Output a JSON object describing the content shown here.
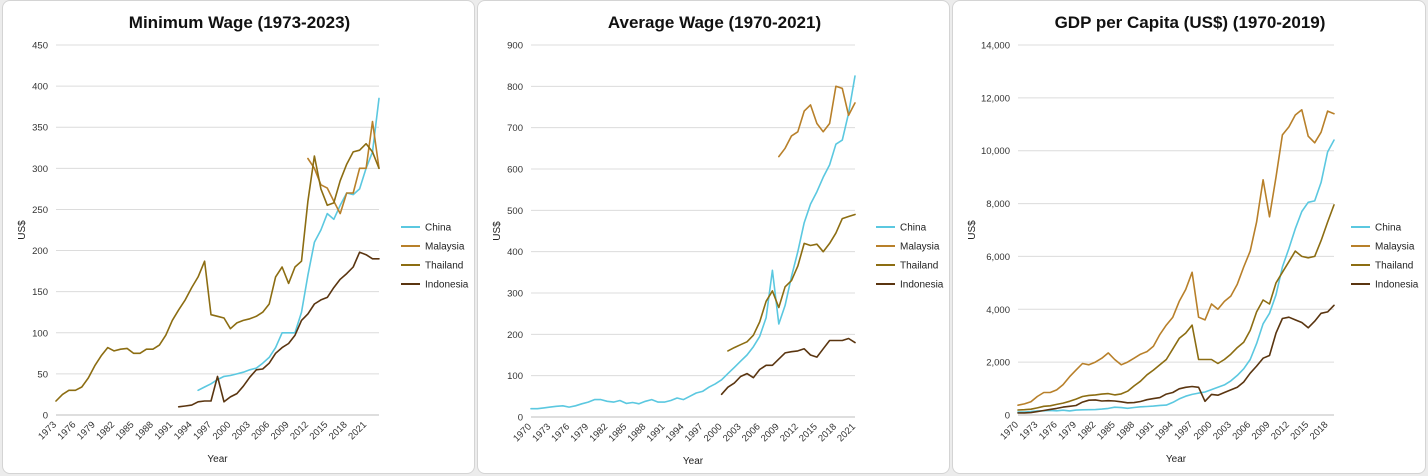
{
  "colors": {
    "China": "#5bc8e0",
    "Malaysia": "#b8802a",
    "Thailand": "#8c6d12",
    "Indonesia": "#5a3510"
  },
  "chart_data": [
    {
      "type": "line",
      "title": "Minimum Wage (1973-2023)",
      "xlabel": "Year",
      "ylabel": "US$",
      "xlim": [
        1973,
        2023
      ],
      "ylim": [
        0,
        450
      ],
      "x_ticks": [
        "1973",
        "1976",
        "1979",
        "1982",
        "1985",
        "1988",
        "1991",
        "1994",
        "1997",
        "2000",
        "2003",
        "2006",
        "2009",
        "2012",
        "2015",
        "2018",
        "2021"
      ],
      "y_ticks": [
        "0",
        "50",
        "100",
        "150",
        "200",
        "250",
        "300",
        "350",
        "400",
        "450"
      ],
      "legend": [
        "China",
        "Malaysia",
        "Thailand",
        "Indonesia"
      ],
      "series": [
        {
          "name": "China",
          "x": [
            1995,
            1996,
            1997,
            1998,
            1999,
            2000,
            2001,
            2002,
            2003,
            2004,
            2005,
            2006,
            2007,
            2008,
            2009,
            2010,
            2011,
            2012,
            2013,
            2014,
            2015,
            2016,
            2017,
            2018,
            2019,
            2020,
            2021,
            2022,
            2023
          ],
          "values": [
            30,
            34,
            38,
            43,
            47,
            48,
            50,
            52,
            55,
            57,
            63,
            70,
            82,
            100,
            100,
            100,
            125,
            170,
            210,
            225,
            245,
            238,
            255,
            270,
            268,
            275,
            300,
            320,
            385
          ]
        },
        {
          "name": "Malaysia",
          "x": [
            2012,
            2013,
            2014,
            2015,
            2016,
            2017,
            2018,
            2019,
            2020,
            2021,
            2022,
            2023
          ],
          "values": [
            312,
            300,
            280,
            276,
            260,
            245,
            270,
            270,
            300,
            300,
            357,
            300
          ]
        },
        {
          "name": "Thailand",
          "x": [
            1973,
            1974,
            1975,
            1976,
            1977,
            1978,
            1979,
            1980,
            1981,
            1982,
            1983,
            1984,
            1985,
            1986,
            1987,
            1988,
            1989,
            1990,
            1991,
            1992,
            1993,
            1994,
            1995,
            1996,
            1997,
            1998,
            1999,
            2000,
            2001,
            2002,
            2003,
            2004,
            2005,
            2006,
            2007,
            2008,
            2009,
            2010,
            2011,
            2012,
            2013,
            2014,
            2015,
            2016,
            2017,
            2018,
            2019,
            2020,
            2021,
            2022,
            2023
          ],
          "values": [
            17,
            25,
            30,
            30,
            34,
            45,
            60,
            72,
            82,
            78,
            80,
            81,
            75,
            75,
            80,
            80,
            85,
            97,
            115,
            128,
            140,
            155,
            168,
            187,
            122,
            120,
            118,
            105,
            112,
            115,
            117,
            120,
            125,
            135,
            168,
            180,
            160,
            180,
            187,
            260,
            315,
            275,
            255,
            258,
            285,
            305,
            320,
            322,
            330,
            320,
            300
          ]
        },
        {
          "name": "Indonesia",
          "x": [
            1992,
            1993,
            1994,
            1995,
            1996,
            1997,
            1998,
            1999,
            2000,
            2001,
            2002,
            2003,
            2004,
            2005,
            2006,
            2007,
            2008,
            2009,
            2010,
            2011,
            2012,
            2013,
            2014,
            2015,
            2016,
            2017,
            2018,
            2019,
            2020,
            2021,
            2022,
            2023
          ],
          "values": [
            10,
            11,
            12,
            16,
            17,
            17,
            47,
            16,
            22,
            26,
            35,
            46,
            55,
            56,
            63,
            75,
            82,
            87,
            97,
            115,
            123,
            135,
            140,
            143,
            155,
            165,
            172,
            180,
            198,
            195,
            190,
            190
          ]
        }
      ]
    },
    {
      "type": "line",
      "title": "Average Wage (1970-2021)",
      "xlabel": "Year",
      "ylabel": "US$",
      "xlim": [
        1970,
        2021
      ],
      "ylim": [
        0,
        900
      ],
      "x_ticks": [
        "1970",
        "1973",
        "1976",
        "1979",
        "1982",
        "1985",
        "1988",
        "1991",
        "1994",
        "1997",
        "2000",
        "2003",
        "2006",
        "2009",
        "2012",
        "2015",
        "2018",
        "2021"
      ],
      "y_ticks": [
        "0",
        "100",
        "200",
        "300",
        "400",
        "500",
        "600",
        "700",
        "800",
        "900"
      ],
      "legend": [
        "China",
        "Malaysia",
        "Thailand",
        "Indonesia"
      ],
      "series": [
        {
          "name": "China",
          "x": [
            1970,
            1971,
            1972,
            1973,
            1974,
            1975,
            1976,
            1977,
            1978,
            1979,
            1980,
            1981,
            1982,
            1983,
            1984,
            1985,
            1986,
            1987,
            1988,
            1989,
            1990,
            1991,
            1992,
            1993,
            1994,
            1995,
            1996,
            1997,
            1998,
            1999,
            2000,
            2001,
            2002,
            2003,
            2004,
            2005,
            2006,
            2007,
            2008,
            2009,
            2010,
            2011,
            2012,
            2013,
            2014,
            2015,
            2016,
            2017,
            2018,
            2019,
            2020,
            2021
          ],
          "values": [
            20,
            20,
            22,
            24,
            26,
            27,
            24,
            27,
            32,
            36,
            42,
            42,
            38,
            36,
            40,
            33,
            35,
            32,
            38,
            42,
            36,
            36,
            40,
            46,
            42,
            50,
            58,
            62,
            72,
            80,
            90,
            105,
            120,
            135,
            150,
            170,
            195,
            240,
            355,
            225,
            270,
            340,
            400,
            470,
            515,
            545,
            580,
            610,
            660,
            670,
            735,
            825
          ]
        },
        {
          "name": "Malaysia",
          "x": [
            2009,
            2010,
            2011,
            2012,
            2013,
            2014,
            2015,
            2016,
            2017,
            2018,
            2019,
            2020,
            2021
          ],
          "values": [
            630,
            650,
            680,
            690,
            740,
            755,
            710,
            690,
            710,
            800,
            795,
            730,
            760
          ]
        },
        {
          "name": "Thailand",
          "x": [
            2001,
            2002,
            2003,
            2004,
            2005,
            2006,
            2007,
            2008,
            2009,
            2010,
            2011,
            2012,
            2013,
            2014,
            2015,
            2016,
            2017,
            2018,
            2019,
            2020,
            2021
          ],
          "values": [
            160,
            168,
            175,
            182,
            198,
            230,
            280,
            305,
            265,
            315,
            330,
            365,
            420,
            415,
            418,
            400,
            420,
            445,
            480,
            485,
            490
          ]
        },
        {
          "name": "Indonesia",
          "x": [
            2000,
            2001,
            2002,
            2003,
            2004,
            2005,
            2006,
            2007,
            2008,
            2009,
            2010,
            2011,
            2012,
            2013,
            2014,
            2015,
            2016,
            2017,
            2018,
            2019,
            2020,
            2021
          ],
          "values": [
            55,
            72,
            82,
            98,
            105,
            95,
            115,
            125,
            125,
            140,
            155,
            158,
            160,
            165,
            150,
            145,
            165,
            185,
            185,
            185,
            190,
            180
          ]
        }
      ]
    },
    {
      "type": "line",
      "title": "GDP per Capita (US$) (1970-2019)",
      "xlabel": "Year",
      "ylabel": "US$",
      "xlim": [
        1970,
        2019
      ],
      "ylim": [
        0,
        14000
      ],
      "x_ticks": [
        "1970",
        "1973",
        "1976",
        "1979",
        "1982",
        "1985",
        "1988",
        "1991",
        "1994",
        "1997",
        "2000",
        "2003",
        "2006",
        "2009",
        "2012",
        "2015",
        "2018"
      ],
      "y_ticks": [
        "0",
        "2,000",
        "4,000",
        "6,000",
        "8,000",
        "10,000",
        "12,000",
        "14,000"
      ],
      "legend": [
        "China",
        "Malaysia",
        "Thailand",
        "Indonesia"
      ],
      "series": [
        {
          "name": "China",
          "x": [
            1970,
            1971,
            1972,
            1973,
            1974,
            1975,
            1976,
            1977,
            1978,
            1979,
            1980,
            1981,
            1982,
            1983,
            1984,
            1985,
            1986,
            1987,
            1988,
            1989,
            1990,
            1991,
            1992,
            1993,
            1994,
            1995,
            1996,
            1997,
            1998,
            1999,
            2000,
            2001,
            2002,
            2003,
            2004,
            2005,
            2006,
            2007,
            2008,
            2009,
            2010,
            2011,
            2012,
            2013,
            2014,
            2015,
            2016,
            2017,
            2018,
            2019
          ],
          "values": [
            110,
            115,
            130,
            155,
            160,
            175,
            160,
            180,
            155,
            185,
            195,
            200,
            205,
            225,
            250,
            295,
            280,
            255,
            285,
            310,
            320,
            335,
            365,
            375,
            475,
            610,
            710,
            780,
            830,
            870,
            960,
            1050,
            1140,
            1290,
            1500,
            1750,
            2100,
            2700,
            3450,
            3850,
            4550,
            5600,
            6300,
            7050,
            7700,
            8050,
            8100,
            8800,
            9950,
            10400
          ]
        },
        {
          "name": "Malaysia",
          "x": [
            1970,
            1971,
            1972,
            1973,
            1974,
            1975,
            1976,
            1977,
            1978,
            1979,
            1980,
            1981,
            1982,
            1983,
            1984,
            1985,
            1986,
            1987,
            1988,
            1989,
            1990,
            1991,
            1992,
            1993,
            1994,
            1995,
            1996,
            1997,
            1998,
            1999,
            2000,
            2001,
            2002,
            2003,
            2004,
            2005,
            2006,
            2007,
            2008,
            2009,
            2010,
            2011,
            2012,
            2013,
            2014,
            2015,
            2016,
            2017,
            2018,
            2019
          ],
          "values": [
            370,
            420,
            500,
            700,
            850,
            850,
            950,
            1150,
            1450,
            1700,
            1950,
            1900,
            2000,
            2150,
            2350,
            2100,
            1900,
            2000,
            2150,
            2300,
            2400,
            2600,
            3050,
            3400,
            3700,
            4300,
            4750,
            5400,
            3700,
            3600,
            4200,
            4000,
            4300,
            4500,
            4950,
            5600,
            6200,
            7300,
            8900,
            7500,
            9000,
            10600,
            10900,
            11350,
            11550,
            10550,
            10300,
            10700,
            11500,
            11400
          ]
        },
        {
          "name": "Thailand",
          "x": [
            1970,
            1971,
            1972,
            1973,
            1974,
            1975,
            1976,
            1977,
            1978,
            1979,
            1980,
            1981,
            1982,
            1983,
            1984,
            1985,
            1986,
            1987,
            1988,
            1989,
            1990,
            1991,
            1992,
            1993,
            1994,
            1995,
            1996,
            1997,
            1998,
            1999,
            2000,
            2001,
            2002,
            2003,
            2004,
            2005,
            2006,
            2007,
            2008,
            2009,
            2010,
            2011,
            2012,
            2013,
            2014,
            2015,
            2016,
            2017,
            2018,
            2019
          ],
          "values": [
            190,
            200,
            220,
            270,
            330,
            350,
            400,
            450,
            520,
            600,
            700,
            740,
            760,
            790,
            810,
            760,
            800,
            900,
            1100,
            1280,
            1520,
            1700,
            1900,
            2100,
            2500,
            2900,
            3100,
            3400,
            2100,
            2100,
            2100,
            1950,
            2100,
            2300,
            2550,
            2750,
            3200,
            3900,
            4350,
            4200,
            5000,
            5400,
            5800,
            6200,
            6000,
            5950,
            6000,
            6600,
            7300,
            7950
          ]
        },
        {
          "name": "Indonesia",
          "x": [
            1970,
            1971,
            1972,
            1973,
            1974,
            1975,
            1976,
            1977,
            1978,
            1979,
            1980,
            1981,
            1982,
            1983,
            1984,
            1985,
            1986,
            1987,
            1988,
            1989,
            1990,
            1991,
            1992,
            1993,
            1994,
            1995,
            1996,
            1997,
            1998,
            1999,
            2000,
            2001,
            2002,
            2003,
            2004,
            2005,
            2006,
            2007,
            2008,
            2009,
            2010,
            2011,
            2012,
            2013,
            2014,
            2015,
            2016,
            2017,
            2018,
            2019
          ],
          "values": [
            80,
            80,
            90,
            130,
            170,
            210,
            250,
            300,
            330,
            360,
            490,
            560,
            570,
            530,
            540,
            530,
            500,
            460,
            470,
            510,
            580,
            620,
            660,
            790,
            850,
            990,
            1050,
            1080,
            1050,
            520,
            780,
            750,
            850,
            950,
            1050,
            1250,
            1580,
            1850,
            2150,
            2250,
            3100,
            3650,
            3700,
            3600,
            3500,
            3300,
            3550,
            3850,
            3900,
            4150
          ]
        }
      ]
    }
  ]
}
